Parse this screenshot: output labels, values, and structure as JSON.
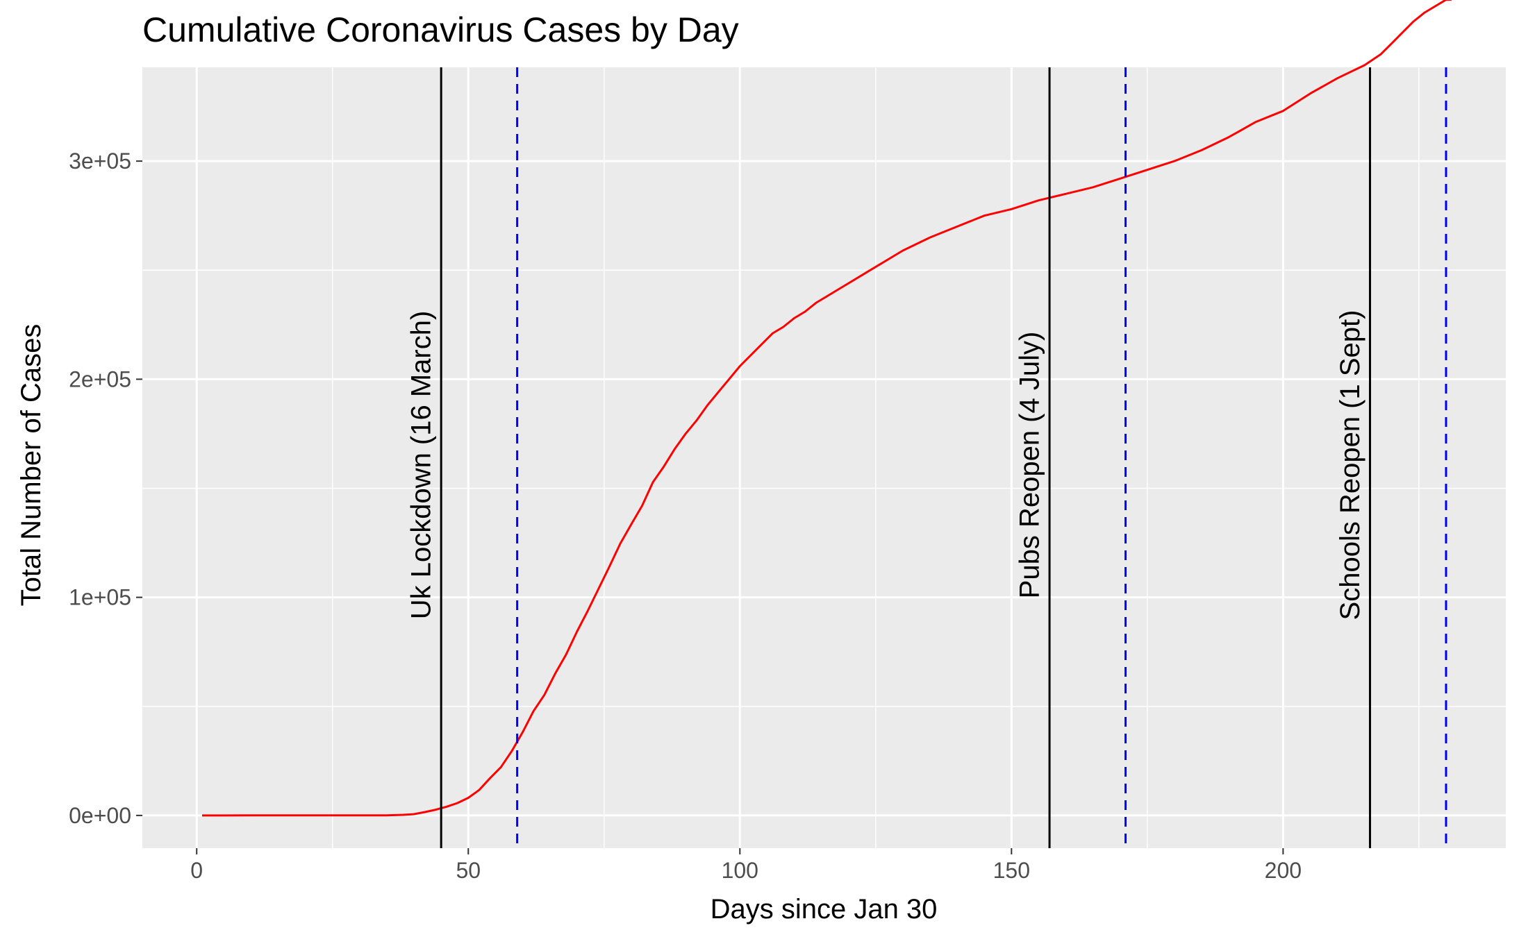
{
  "chart_data": {
    "type": "line",
    "title": "Cumulative Coronavirus Cases by Day",
    "xlabel": "Days since Jan 30",
    "ylabel": "Total Number of Cases",
    "xlim": [
      -10,
      241
    ],
    "ylim": [
      -15000,
      343000
    ],
    "x_ticks": [
      0,
      50,
      100,
      150,
      200
    ],
    "x_tick_labels": [
      "0",
      "50",
      "100",
      "150",
      "200"
    ],
    "y_ticks": [
      0,
      100000,
      200000,
      300000
    ],
    "y_tick_labels": [
      "0e+00",
      "1e+05",
      "2e+05",
      "3e+05"
    ],
    "grid": true,
    "colors": {
      "panel": "#ebebeb",
      "grid": "#ffffff",
      "series": "#ff0000",
      "event_line": "#000000",
      "dashed_line": "#0000ff",
      "tick_text": "#4d4d4d"
    },
    "series": [
      {
        "x": [
          1,
          5,
          10,
          15,
          20,
          25,
          30,
          35,
          38,
          40,
          42,
          44,
          46,
          48,
          50,
          52,
          54,
          56,
          58,
          60,
          62,
          64,
          66,
          68,
          70,
          72,
          74,
          76,
          78,
          80,
          82,
          84,
          86,
          88,
          90,
          92,
          94,
          96,
          98,
          100,
          102,
          104,
          106,
          108,
          110,
          112,
          114,
          116,
          118,
          120,
          122,
          124,
          126,
          128,
          130,
          135,
          140,
          145,
          150,
          155,
          160,
          165,
          170,
          175,
          180,
          185,
          190,
          195,
          200,
          205,
          210,
          215,
          218,
          220,
          222,
          224,
          226,
          228,
          230,
          231
        ],
        "values": [
          2,
          2,
          8,
          9,
          9,
          13,
          20,
          51,
          273,
          590,
          1543,
          2626,
          3983,
          5683,
          8077,
          11658,
          17089,
          22141,
          29474,
          38168,
          47806,
          55242,
          65077,
          73758,
          84279,
          93873,
          104000,
          114217,
          124743,
          133495,
          142000,
          152840,
          160000,
          168000,
          175000,
          181000,
          188000,
          194000,
          200000,
          206000,
          211000,
          216000,
          221000,
          224000,
          228000,
          231000,
          235000,
          238000,
          241000,
          244000,
          247000,
          250000,
          253000,
          256000,
          259000,
          265000,
          270000,
          275000,
          278000,
          282000,
          285000,
          288000,
          292000,
          296000,
          300000,
          305000,
          311000,
          318000,
          323000,
          331000,
          338000,
          344000,
          349000,
          354000,
          359000,
          364000,
          368000,
          371000,
          374000,
          374000
        ]
      }
    ],
    "solid_vlines": [
      45,
      157,
      216
    ],
    "dashed_vlines": [
      59,
      171,
      230
    ],
    "annotations": [
      {
        "x": 43,
        "label": "Uk Lockdown (16 March)"
      },
      {
        "x": 155,
        "label": "Pubs Reopen (4 July)"
      },
      {
        "x": 214,
        "label": "Schools Reopen (1 Sept)"
      }
    ]
  }
}
